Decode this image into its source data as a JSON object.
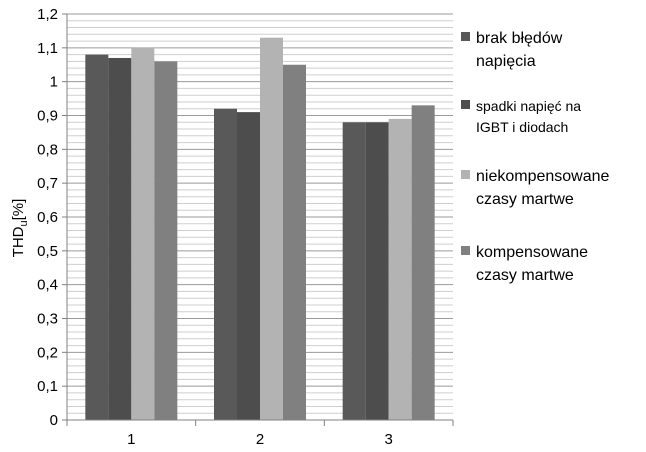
{
  "chart_data": {
    "type": "bar",
    "categories": [
      "1",
      "2",
      "3"
    ],
    "series": [
      {
        "name": "brak błędów napięcia",
        "values": [
          1.08,
          0.92,
          0.88
        ]
      },
      {
        "name": "spadki napięć na IGBT i diodach",
        "values": [
          1.07,
          0.91,
          0.88
        ]
      },
      {
        "name": "niekompensowane czasy martwe",
        "values": [
          1.1,
          1.13,
          0.89
        ]
      },
      {
        "name": "kompensowane czasy martwe",
        "values": [
          1.06,
          1.05,
          0.93
        ]
      }
    ],
    "legend_lines": [
      [
        "brak błędów",
        "napięcia"
      ],
      [
        "spadki napięć na",
        "IGBT i diodach"
      ],
      [
        "niekompensowane",
        "czasy martwe"
      ],
      [
        "kompensowane",
        "czasy martwe"
      ]
    ],
    "title": "",
    "xlabel": "",
    "ylabel": {
      "main": "THD",
      "sub": "u",
      "unit": "[%]"
    },
    "ylim": [
      0,
      1.2
    ],
    "yticks": [
      "0",
      "0,1",
      "0,2",
      "0,3",
      "0,4",
      "0,5",
      "0,6",
      "0,7",
      "0,8",
      "0,9",
      "1",
      "1,1",
      "1,2"
    ],
    "grid": true,
    "legend_position": "right",
    "colors": [
      "#595959",
      "#4d4d4d",
      "#b3b3b3",
      "#808080"
    ]
  }
}
